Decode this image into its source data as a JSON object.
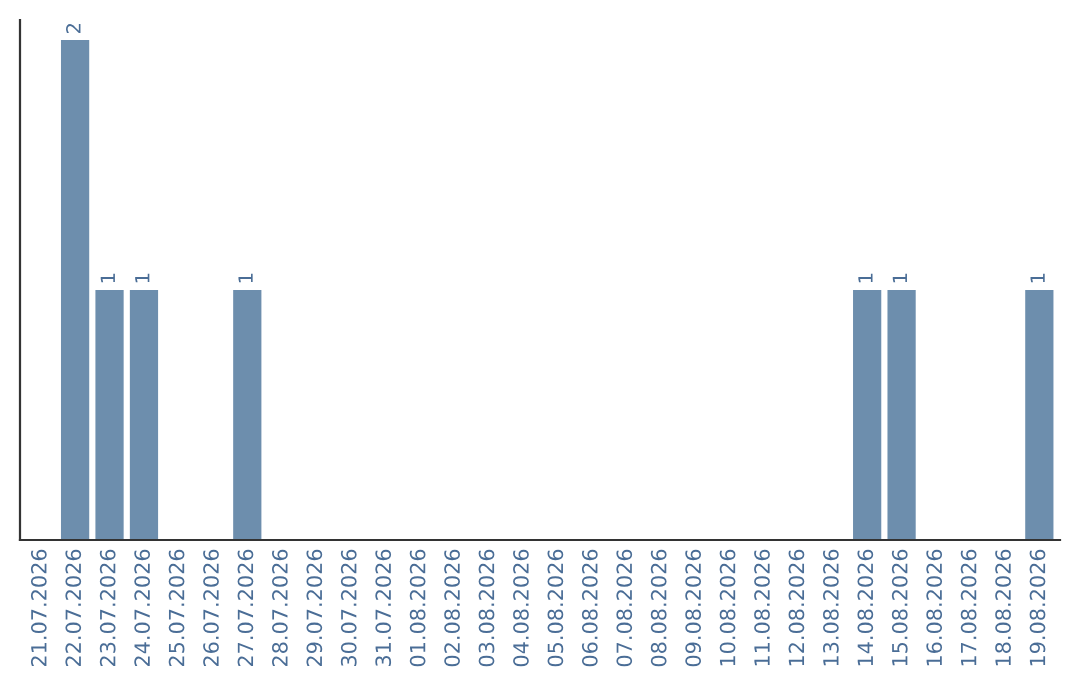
{
  "chart_data": {
    "type": "bar",
    "categories": [
      "21.07.2026",
      "22.07.2026",
      "23.07.2026",
      "24.07.2026",
      "25.07.2026",
      "26.07.2026",
      "27.07.2026",
      "28.07.2026",
      "29.07.2026",
      "30.07.2026",
      "31.07.2026",
      "01.08.2026",
      "02.08.2026",
      "03.08.2026",
      "04.08.2026",
      "05.08.2026",
      "06.08.2026",
      "07.08.2026",
      "08.08.2026",
      "09.08.2026",
      "10.08.2026",
      "11.08.2026",
      "12.08.2026",
      "13.08.2026",
      "14.08.2026",
      "15.08.2026",
      "16.08.2026",
      "17.08.2026",
      "18.08.2026",
      "19.08.2026"
    ],
    "values": [
      0,
      2,
      1,
      1,
      0,
      0,
      1,
      0,
      0,
      0,
      0,
      0,
      0,
      0,
      0,
      0,
      0,
      0,
      0,
      0,
      0,
      0,
      0,
      0,
      1,
      1,
      0,
      0,
      0,
      1
    ],
    "value_labels": [
      null,
      "2",
      "1",
      "1",
      null,
      null,
      "1",
      null,
      null,
      null,
      null,
      null,
      null,
      null,
      null,
      null,
      null,
      null,
      null,
      null,
      null,
      null,
      null,
      null,
      "1",
      "1",
      null,
      null,
      null,
      "1"
    ],
    "color": "#6d8ead",
    "tick_labels": "x",
    "grid": false,
    "legend": false
  }
}
